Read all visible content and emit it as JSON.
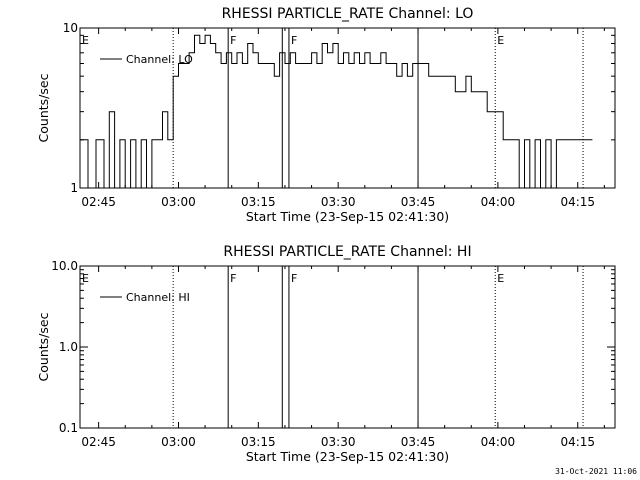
{
  "footer": {
    "timestamp": "31-Oct-2021 11:06"
  },
  "chart_data": [
    {
      "type": "line",
      "title": "RHESSI PARTICLE_RATE Channel: LO",
      "xlabel": "Start Time (23-Sep-15 02:41:30)",
      "ylabel": "Counts/sec",
      "yscale": "log",
      "xlim": [
        "02:41:30",
        "04:22:00"
      ],
      "ylim": [
        1,
        10
      ],
      "xticks": [
        "02:45",
        "03:00",
        "03:15",
        "03:30",
        "03:45",
        "04:00",
        "04:15"
      ],
      "yticks": [
        "1",
        "10"
      ],
      "legend": {
        "label": "Channel: LO",
        "placement": "top-left"
      },
      "markers": [
        {
          "time": "02:41:30",
          "label": "E",
          "style": "dotted"
        },
        {
          "time": "02:59:00",
          "label": "",
          "style": "dotted"
        },
        {
          "time": "03:09:20",
          "label": "F",
          "style": "solid"
        },
        {
          "time": "03:19:30",
          "label": "",
          "style": "solid"
        },
        {
          "time": "03:20:45",
          "label": "F",
          "style": "solid"
        },
        {
          "time": "03:45:00",
          "label": "",
          "style": "solid"
        },
        {
          "time": "03:59:30",
          "label": "E",
          "style": "dotted"
        },
        {
          "time": "04:16:00",
          "label": "",
          "style": "dotted"
        }
      ],
      "series": [
        {
          "name": "Channel: LO",
          "x": [
            "02:41:30",
            "02:43:00",
            "02:44:30",
            "02:46:00",
            "02:47:00",
            "02:48:00",
            "02:49:00",
            "02:50:00",
            "02:51:00",
            "02:52:00",
            "02:53:00",
            "02:54:00",
            "02:55:00",
            "02:56:00",
            "02:57:00",
            "02:58:00",
            "02:59:00",
            "03:00:00",
            "03:01:00",
            "03:02:00",
            "03:03:00",
            "03:04:00",
            "03:05:00",
            "03:06:00",
            "03:07:00",
            "03:08:00",
            "03:09:00",
            "03:10:00",
            "03:11:00",
            "03:12:00",
            "03:13:00",
            "03:14:00",
            "03:15:00",
            "03:16:00",
            "03:17:00",
            "03:18:00",
            "03:19:00",
            "03:20:00",
            "03:21:00",
            "03:22:00",
            "03:23:00",
            "03:24:00",
            "03:25:00",
            "03:26:00",
            "03:27:00",
            "03:28:00",
            "03:29:00",
            "03:30:00",
            "03:31:00",
            "03:32:00",
            "03:33:00",
            "03:34:00",
            "03:35:00",
            "03:36:00",
            "03:37:00",
            "03:38:00",
            "03:39:00",
            "03:40:00",
            "03:41:00",
            "03:42:00",
            "03:43:00",
            "03:44:00",
            "03:45:00",
            "03:46:00",
            "03:47:00",
            "03:48:00",
            "03:49:00",
            "03:50:00",
            "03:51:00",
            "03:52:00",
            "03:53:00",
            "03:54:00",
            "03:55:00",
            "03:56:00",
            "03:57:00",
            "03:58:00",
            "03:59:00",
            "04:00:00",
            "04:01:00",
            "04:02:00",
            "04:03:00",
            "04:04:00",
            "04:05:00",
            "04:06:00",
            "04:07:00",
            "04:08:00",
            "04:09:00",
            "04:10:00",
            "04:11:00",
            "04:12:00",
            "04:13:00",
            "04:14:00",
            "04:15:00",
            "04:16:00",
            "04:17:00"
          ],
          "values": [
            2,
            1,
            2,
            1,
            3,
            1,
            2,
            1,
            2,
            1,
            2,
            1,
            2,
            2,
            3,
            2,
            5,
            6,
            6,
            7,
            9,
            8,
            9,
            8,
            7,
            6,
            7,
            6,
            7,
            6,
            8,
            7,
            6,
            6,
            6,
            5,
            7,
            6,
            7,
            6,
            6,
            6,
            7,
            6,
            8,
            7,
            8,
            6,
            7,
            6,
            7,
            6,
            7,
            6,
            6,
            7,
            6,
            6,
            5,
            6,
            5,
            6,
            6,
            6,
            5,
            5,
            5,
            5,
            5,
            4,
            4,
            5,
            4,
            4,
            4,
            3,
            3,
            3,
            2,
            2,
            2,
            1,
            2,
            1,
            2,
            1,
            2,
            1,
            2,
            2,
            2,
            2,
            2,
            2,
            2
          ]
        }
      ]
    },
    {
      "type": "line",
      "title": "RHESSI PARTICLE_RATE Channel: HI",
      "xlabel": "Start Time (23-Sep-15 02:41:30)",
      "ylabel": "Counts/sec",
      "yscale": "log",
      "xlim": [
        "02:41:30",
        "04:22:00"
      ],
      "ylim": [
        0.1,
        10.0
      ],
      "xticks": [
        "02:45",
        "03:00",
        "03:15",
        "03:30",
        "03:45",
        "04:00",
        "04:15"
      ],
      "yticks": [
        "0.1",
        "1.0",
        "10.0"
      ],
      "legend": {
        "label": "Channel: HI",
        "placement": "top-left"
      },
      "markers": [
        {
          "time": "02:41:30",
          "label": "E",
          "style": "dotted"
        },
        {
          "time": "02:59:00",
          "label": "",
          "style": "dotted"
        },
        {
          "time": "03:09:20",
          "label": "F",
          "style": "solid"
        },
        {
          "time": "03:19:30",
          "label": "",
          "style": "solid"
        },
        {
          "time": "03:20:45",
          "label": "F",
          "style": "solid"
        },
        {
          "time": "03:45:00",
          "label": "",
          "style": "solid"
        },
        {
          "time": "03:59:30",
          "label": "E",
          "style": "dotted"
        },
        {
          "time": "04:16:00",
          "label": "",
          "style": "dotted"
        }
      ],
      "series": [
        {
          "name": "Channel: HI",
          "x": [],
          "values": []
        }
      ]
    }
  ]
}
